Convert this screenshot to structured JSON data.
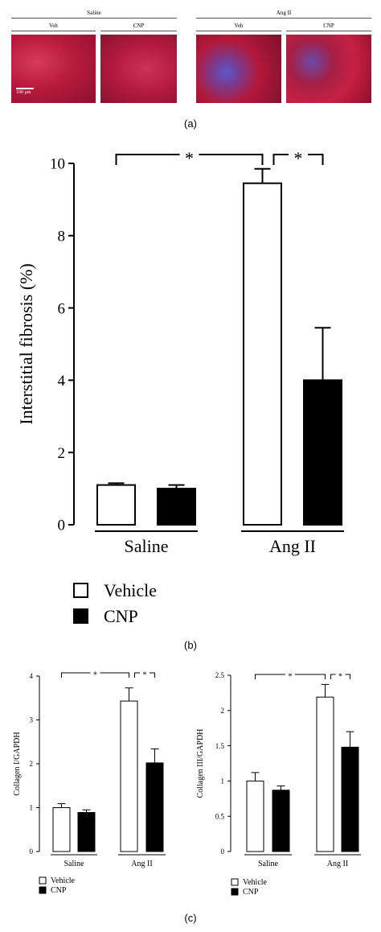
{
  "panel_a": {
    "group_labels": [
      "Saline",
      "Ang II"
    ],
    "sub_labels": [
      "Veh",
      "CNP",
      "Veh",
      "CNP"
    ],
    "scale_bar_text": "100 μm",
    "label": "(a)"
  },
  "panel_b_label": "(b)",
  "panel_c_label": "(c)",
  "chart_data": [
    {
      "type": "bar",
      "categories": [
        "Saline",
        "Ang II"
      ],
      "series": [
        {
          "name": "Vehicle",
          "values": [
            1.1,
            9.45
          ],
          "errors": [
            0.05,
            0.4
          ]
        },
        {
          "name": "CNP",
          "values": [
            1.0,
            4.0
          ],
          "errors": [
            0.1,
            1.45
          ]
        }
      ],
      "ylabel": "Interstitial fibrosis (%)",
      "ylim": [
        0,
        10
      ],
      "yticks": [
        "0",
        "2",
        "4",
        "6",
        "8",
        "10"
      ],
      "significance": [
        "*",
        "*"
      ],
      "legend": "bottom-left",
      "grid": false
    },
    {
      "type": "bar",
      "categories": [
        "Saline",
        "Ang II"
      ],
      "series": [
        {
          "name": "Vehicle",
          "values": [
            1.0,
            3.43
          ],
          "errors": [
            0.09,
            0.3
          ]
        },
        {
          "name": "CNP",
          "values": [
            0.89,
            2.02
          ],
          "errors": [
            0.06,
            0.32
          ]
        }
      ],
      "ylabel": "Collagen I/GAPDH",
      "ylim": [
        0,
        4
      ],
      "yticks": [
        "0",
        "1",
        "2",
        "3",
        "4"
      ],
      "significance": [
        "*",
        "*"
      ],
      "legend": "bottom-left",
      "grid": false
    },
    {
      "type": "bar",
      "categories": [
        "Saline",
        "Ang II"
      ],
      "series": [
        {
          "name": "Vehicle",
          "values": [
            1.0,
            2.19
          ],
          "errors": [
            0.12,
            0.18
          ]
        },
        {
          "name": "CNP",
          "values": [
            0.87,
            1.48
          ],
          "errors": [
            0.06,
            0.22
          ]
        }
      ],
      "ylabel": "Collagen III/GAPDH",
      "ylim": [
        0,
        2.5
      ],
      "yticks": [
        "0",
        "0.5",
        "1",
        "1.5",
        "2",
        "2.5"
      ],
      "significance": [
        "*",
        "*"
      ],
      "legend": "bottom-left",
      "grid": false
    }
  ]
}
